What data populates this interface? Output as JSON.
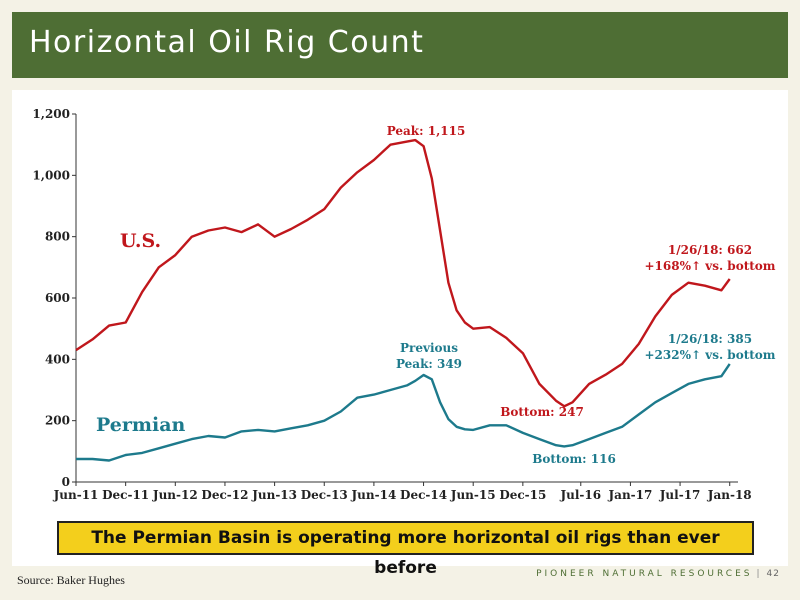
{
  "slide": {
    "title": "Horizontal Oil Rig Count",
    "callout": "The Permian Basin is operating more horizontal oil rigs than ever before",
    "source": "Source: Baker Hughes",
    "company": "PIONEER NATURAL RESOURCES",
    "separator": "|",
    "page_number": "42"
  },
  "chart_data": {
    "type": "line",
    "ylim": [
      0,
      1200
    ],
    "yticks": [
      0,
      200,
      400,
      600,
      800,
      1000,
      1200
    ],
    "ytick_labels": [
      "0",
      "200",
      "400",
      "600",
      "800",
      "1,000",
      "1,200"
    ],
    "xlim": [
      "Jun-11",
      "Feb-18"
    ],
    "xtick_labels": [
      "Jun-11",
      "Dec-11",
      "Jun-12",
      "Dec-12",
      "Jun-13",
      "Dec-13",
      "Jun-14",
      "Dec-14",
      "Jun-15",
      "Dec-15",
      "Jul-16",
      "Jan-17",
      "Jul-17",
      "Jan-18"
    ],
    "grid": false,
    "colors": {
      "us": "#c0171c",
      "permian": "#1d7a8c"
    },
    "series": [
      {
        "name": "U.S.",
        "x": [
          "Jun-11",
          "Aug-11",
          "Oct-11",
          "Dec-11",
          "Feb-12",
          "Apr-12",
          "Jun-12",
          "Aug-12",
          "Oct-12",
          "Dec-12",
          "Feb-13",
          "Apr-13",
          "Jun-13",
          "Aug-13",
          "Oct-13",
          "Dec-13",
          "Feb-14",
          "Apr-14",
          "Jun-14",
          "Aug-14",
          "Oct-14",
          "Nov-14",
          "Dec-14",
          "Jan-15",
          "Feb-15",
          "Mar-15",
          "Apr-15",
          "May-15",
          "Jun-15",
          "Aug-15",
          "Oct-15",
          "Dec-15",
          "Feb-16",
          "Apr-16",
          "May-16",
          "Jun-16",
          "Aug-16",
          "Oct-16",
          "Dec-16",
          "Feb-17",
          "Apr-17",
          "Jun-17",
          "Aug-17",
          "Oct-17",
          "Dec-17",
          "Jan-18"
        ],
        "values": [
          430,
          465,
          510,
          520,
          620,
          700,
          740,
          800,
          820,
          830,
          815,
          840,
          800,
          825,
          855,
          890,
          960,
          1010,
          1050,
          1100,
          1110,
          1115,
          1095,
          990,
          820,
          650,
          560,
          520,
          500,
          505,
          470,
          420,
          320,
          265,
          247,
          260,
          320,
          350,
          385,
          450,
          540,
          610,
          650,
          640,
          625,
          662
        ]
      },
      {
        "name": "Permian",
        "x": [
          "Jun-11",
          "Aug-11",
          "Oct-11",
          "Dec-11",
          "Feb-12",
          "Apr-12",
          "Jun-12",
          "Aug-12",
          "Oct-12",
          "Dec-12",
          "Feb-13",
          "Apr-13",
          "Jun-13",
          "Aug-13",
          "Oct-13",
          "Dec-13",
          "Feb-14",
          "Apr-14",
          "Jun-14",
          "Aug-14",
          "Oct-14",
          "Nov-14",
          "Dec-14",
          "Jan-15",
          "Feb-15",
          "Mar-15",
          "Apr-15",
          "May-15",
          "Jun-15",
          "Aug-15",
          "Oct-15",
          "Dec-15",
          "Feb-16",
          "Apr-16",
          "May-16",
          "Jun-16",
          "Aug-16",
          "Oct-16",
          "Dec-16",
          "Feb-17",
          "Apr-17",
          "Jun-17",
          "Aug-17",
          "Oct-17",
          "Dec-17",
          "Jan-18"
        ],
        "values": [
          75,
          75,
          70,
          88,
          95,
          110,
          125,
          140,
          150,
          145,
          165,
          170,
          165,
          175,
          185,
          200,
          230,
          275,
          285,
          300,
          315,
          330,
          349,
          335,
          260,
          205,
          180,
          172,
          170,
          185,
          185,
          160,
          140,
          120,
          116,
          120,
          140,
          160,
          180,
          220,
          260,
          290,
          320,
          335,
          345,
          385
        ]
      }
    ],
    "series_labels": [
      {
        "text": "U.S.",
        "series": "U.S."
      },
      {
        "text": "Permian",
        "series": "Permian"
      }
    ],
    "annotations": [
      {
        "series": "U.S.",
        "lines": [
          "Peak: 1,115"
        ],
        "x": "Nov-14",
        "y": 1115
      },
      {
        "series": "U.S.",
        "lines": [
          "Bottom: 247"
        ],
        "x": "May-16",
        "y": 247
      },
      {
        "series": "U.S.",
        "lines": [
          "1/26/18: 662",
          "+168%↑ vs. bottom"
        ],
        "x": "Jan-18",
        "y": 662
      },
      {
        "series": "Permian",
        "lines": [
          "Previous",
          "Peak: 349"
        ],
        "x": "Dec-14",
        "y": 349
      },
      {
        "series": "Permian",
        "lines": [
          "Bottom: 116"
        ],
        "x": "May-16",
        "y": 116
      },
      {
        "series": "Permian",
        "lines": [
          "1/26/18: 385",
          "+232%↑ vs. bottom"
        ],
        "x": "Jan-18",
        "y": 385
      }
    ]
  }
}
